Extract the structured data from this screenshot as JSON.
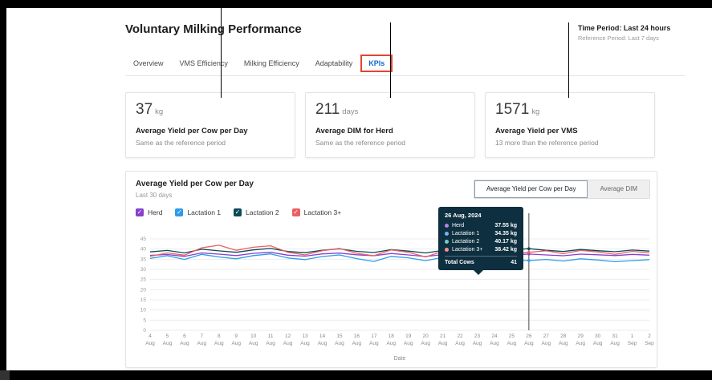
{
  "header": {
    "title": "Voluntary Milking Performance",
    "time_period_label": "Time Period: Last 24 hours",
    "reference_period_label": "Reference Period: Last 7 days"
  },
  "tabs": [
    {
      "label": "Overview",
      "active": false,
      "highlighted": false
    },
    {
      "label": "VMS Efficiency",
      "active": false,
      "highlighted": false
    },
    {
      "label": "Milking Efficiency",
      "active": false,
      "highlighted": false
    },
    {
      "label": "Adaptability",
      "active": false,
      "highlighted": false
    },
    {
      "label": "KPIs",
      "active": true,
      "highlighted": true
    }
  ],
  "kpi_cards": [
    {
      "value": "37",
      "unit": "kg",
      "label": "Average Yield per Cow per Day",
      "comparison": "Same as the reference period"
    },
    {
      "value": "211",
      "unit": "days",
      "label": "Average DIM for Herd",
      "comparison": "Same as the reference period"
    },
    {
      "value": "1571",
      "unit": "kg",
      "label": "Average Yield per VMS",
      "comparison": "13 more than the reference period"
    }
  ],
  "chart_section": {
    "title": "Average Yield per Cow per Day",
    "subtitle": "Last 30 days",
    "toggle": [
      {
        "label": "Average Yield per Cow per Day",
        "active": true
      },
      {
        "label": "Average DIM",
        "active": false
      }
    ],
    "legend": [
      {
        "label": "Herd",
        "color": "#8640cd"
      },
      {
        "label": "Lactation 1",
        "color": "#2e9bea"
      },
      {
        "label": "Lactation 2",
        "color": "#0c4a57"
      },
      {
        "label": "Lactation 3+",
        "color": "#ea5f5f"
      }
    ],
    "tooltip": {
      "date": "26 Aug, 2024",
      "rows": [
        {
          "label": "Herd",
          "value": "37.55 kg",
          "color": "#b085e8"
        },
        {
          "label": "Lactation 1",
          "value": "34.35 kg",
          "color": "#6fb6f5"
        },
        {
          "label": "Lactation 2",
          "value": "40.17 kg",
          "color": "#79c7cf"
        },
        {
          "label": "Lactation 3+",
          "value": "38.42 kg",
          "color": "#f59296"
        }
      ],
      "total_label": "Total Cows",
      "total_value": "41"
    },
    "xlabel": "Date"
  },
  "colors": {
    "tab_active": "#1467c8",
    "click_highlight": "#e2452f",
    "tooltip_background": "#0d2f40"
  },
  "chart_data": {
    "type": "line",
    "title": "Average Yield per Cow per Day",
    "xlabel": "Date",
    "ylabel": "",
    "ylim": [
      0,
      45
    ],
    "yticks": [
      0,
      5,
      10,
      15,
      20,
      25,
      30,
      35,
      40,
      45
    ],
    "cursor_index": 22,
    "x": [
      "4 Aug",
      "5 Aug",
      "6 Aug",
      "7 Aug",
      "8 Aug",
      "9 Aug",
      "10 Aug",
      "11 Aug",
      "12 Aug",
      "13 Aug",
      "14 Aug",
      "15 Aug",
      "16 Aug",
      "17 Aug",
      "18 Aug",
      "19 Aug",
      "20 Aug",
      "21 Aug",
      "22 Aug",
      "23 Aug",
      "24 Aug",
      "25 Aug",
      "26 Aug",
      "27 Aug",
      "28 Aug",
      "29 Aug",
      "30 Aug",
      "31 Aug",
      "1 Sep",
      "2 Sep"
    ],
    "series": [
      {
        "name": "Herd",
        "color": "#8640cd",
        "values": [
          36.9,
          37.3,
          36.4,
          38.1,
          37.5,
          36.8,
          37.9,
          38.4,
          37.0,
          36.5,
          37.6,
          38.0,
          37.2,
          36.7,
          37.8,
          37.1,
          36.3,
          37.3,
          38.0,
          38.5,
          37.4,
          36.9,
          37.55,
          37.1,
          36.7,
          37.5,
          37.2,
          36.8,
          37.4,
          37.0
        ]
      },
      {
        "name": "Lactation 1",
        "color": "#2e9bea",
        "values": [
          35.4,
          36.7,
          34.9,
          37.4,
          36.1,
          35.2,
          36.8,
          37.6,
          35.6,
          34.8,
          36.3,
          37.1,
          35.3,
          33.9,
          36.4,
          35.7,
          34.3,
          35.9,
          36.6,
          37.3,
          35.5,
          34.7,
          34.35,
          34.9,
          34.1,
          35.2,
          34.6,
          33.8,
          34.3,
          34.8
        ]
      },
      {
        "name": "Lactation 2",
        "color": "#0c4a57",
        "values": [
          38.6,
          39.3,
          38.1,
          39.9,
          39.1,
          38.4,
          39.6,
          40.3,
          38.8,
          38.2,
          39.4,
          40.1,
          38.9,
          38.3,
          39.7,
          39.0,
          38.1,
          39.3,
          39.9,
          40.4,
          39.1,
          39.6,
          40.17,
          39.4,
          38.8,
          39.8,
          39.2,
          38.7,
          39.5,
          39.0
        ]
      },
      {
        "name": "Lactation 3+",
        "color": "#ea5f5f",
        "values": [
          36.4,
          38.1,
          37.0,
          40.6,
          41.9,
          39.4,
          40.9,
          41.6,
          38.4,
          37.1,
          39.2,
          40.3,
          37.9,
          36.7,
          39.6,
          38.4,
          36.1,
          38.9,
          40.1,
          41.1,
          38.6,
          37.4,
          38.42,
          39.1,
          37.7,
          39.3,
          38.6,
          37.4,
          38.9,
          38.1
        ]
      }
    ]
  }
}
